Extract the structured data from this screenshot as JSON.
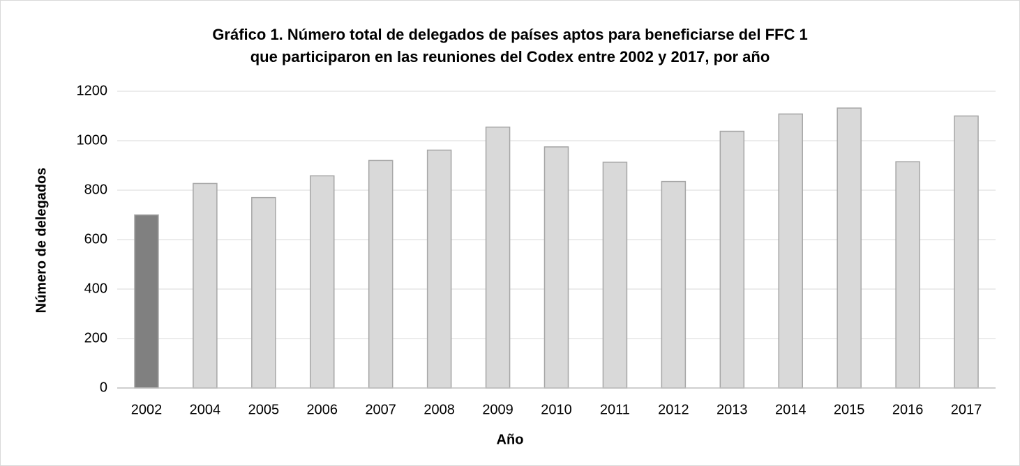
{
  "chart_data": {
    "type": "bar",
    "title": [
      "Gráfico 1. Número total de delegados de países aptos para beneficiarse del FFC 1",
      "que participaron en las reuniones del Codex entre 2002 y 2017, por año"
    ],
    "x_label": "Año",
    "y_label": "Número de delegados",
    "categories": [
      "2002",
      "2004",
      "2005",
      "2006",
      "2007",
      "2008",
      "2009",
      "2010",
      "2011",
      "2012",
      "2013",
      "2014",
      "2015",
      "2016",
      "2017"
    ],
    "values": [
      700,
      827,
      770,
      858,
      920,
      962,
      1055,
      975,
      913,
      835,
      1038,
      1108,
      1132,
      915,
      1100
    ],
    "colors": [
      "#808080",
      "#d9d9d9",
      "#d9d9d9",
      "#d9d9d9",
      "#d9d9d9",
      "#d9d9d9",
      "#d9d9d9",
      "#d9d9d9",
      "#d9d9d9",
      "#d9d9d9",
      "#d9d9d9",
      "#d9d9d9",
      "#d9d9d9",
      "#d9d9d9",
      "#d9d9d9"
    ],
    "ylim": [
      0,
      1200
    ],
    "yticks": [
      0,
      200,
      400,
      600,
      800,
      1000,
      1200
    ],
    "grid": true
  }
}
